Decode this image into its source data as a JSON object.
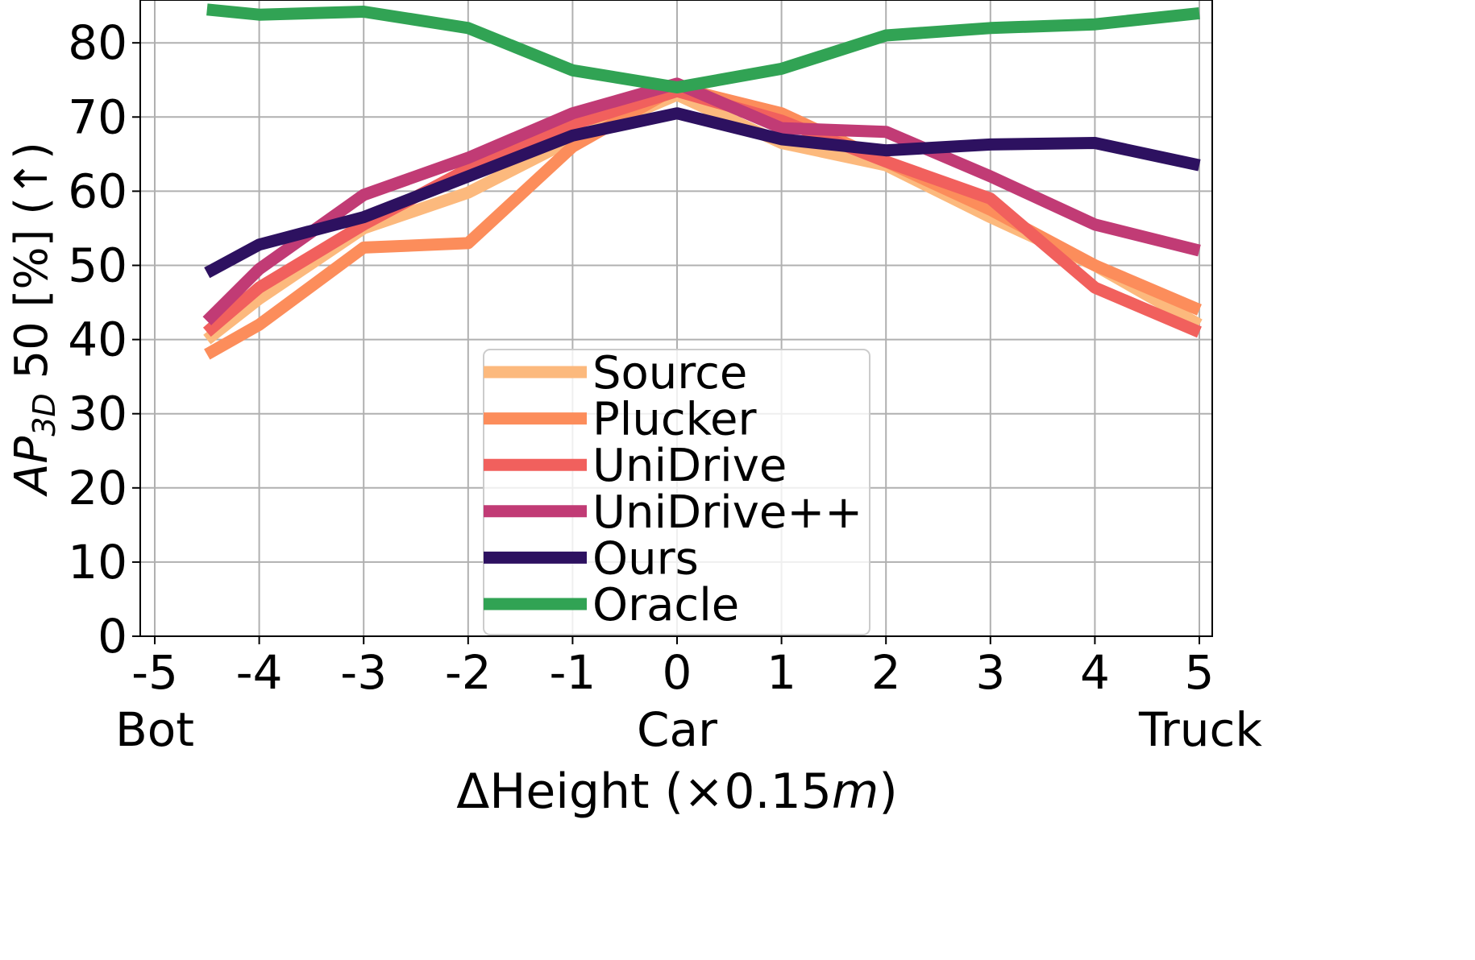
{
  "chart_data": {
    "type": "line",
    "ylabel": {
      "ap": "AP",
      "sub": "3D",
      "rest": " 50 [%] (↑)"
    },
    "xlabel": {
      "prefix": "ΔHeight (×0.15",
      "italic": "m",
      "suffix": ")"
    },
    "x_ticks": [
      "-5",
      "-4",
      "-3",
      "-2",
      "-1",
      "0",
      "1",
      "2",
      "3",
      "4",
      "5"
    ],
    "x_tick_values": [
      -5,
      -4,
      -3,
      -2,
      -1,
      0,
      1,
      2,
      3,
      4,
      5
    ],
    "x_sublabels": [
      {
        "x": -5,
        "text": "Bot"
      },
      {
        "x": 0,
        "text": "Car"
      },
      {
        "x": 5,
        "text": "Truck"
      }
    ],
    "y_ticks": [
      "0",
      "10",
      "20",
      "30",
      "40",
      "50",
      "60",
      "70",
      "80"
    ],
    "y_tick_values": [
      0,
      10,
      20,
      30,
      40,
      50,
      60,
      70,
      80
    ],
    "ylim": [
      0,
      85
    ],
    "x_points": [
      -4.5,
      -4,
      -3,
      -2,
      -1,
      0,
      1,
      2,
      3,
      4,
      5
    ],
    "grid": true,
    "legend_position": "bottom-center",
    "series": [
      {
        "name": "Source",
        "color": "#fcb97d",
        "values": [
          40.0,
          45.5,
          55.0,
          59.8,
          67.0,
          73.0,
          66.5,
          63.5,
          56.5,
          50.0,
          42.0
        ]
      },
      {
        "name": "Plucker",
        "color": "#fc8d5b",
        "values": [
          38.0,
          42.0,
          52.4,
          53.0,
          66.0,
          74.0,
          70.5,
          64.0,
          57.5,
          50.0,
          44.0
        ]
      },
      {
        "name": "UniDrive",
        "color": "#f1605d",
        "values": [
          41.0,
          47.0,
          55.5,
          63.0,
          69.0,
          73.5,
          69.5,
          64.0,
          59.0,
          47.0,
          41.0
        ]
      },
      {
        "name": "UniDrive++",
        "color": "#c13b75",
        "values": [
          42.5,
          49.5,
          59.5,
          64.5,
          70.5,
          74.5,
          68.5,
          68.0,
          62.0,
          55.5,
          52.0
        ]
      },
      {
        "name": "Ours",
        "color": "#2d1160",
        "values": [
          49.0,
          52.8,
          56.5,
          62.0,
          67.5,
          70.5,
          67.0,
          65.5,
          66.3,
          66.5,
          63.5
        ]
      },
      {
        "name": "Oracle",
        "color": "#31a354",
        "values": [
          84.5,
          83.8,
          84.2,
          82.0,
          76.3,
          74.0,
          76.5,
          81.0,
          82.0,
          82.5,
          84.0
        ]
      }
    ]
  }
}
